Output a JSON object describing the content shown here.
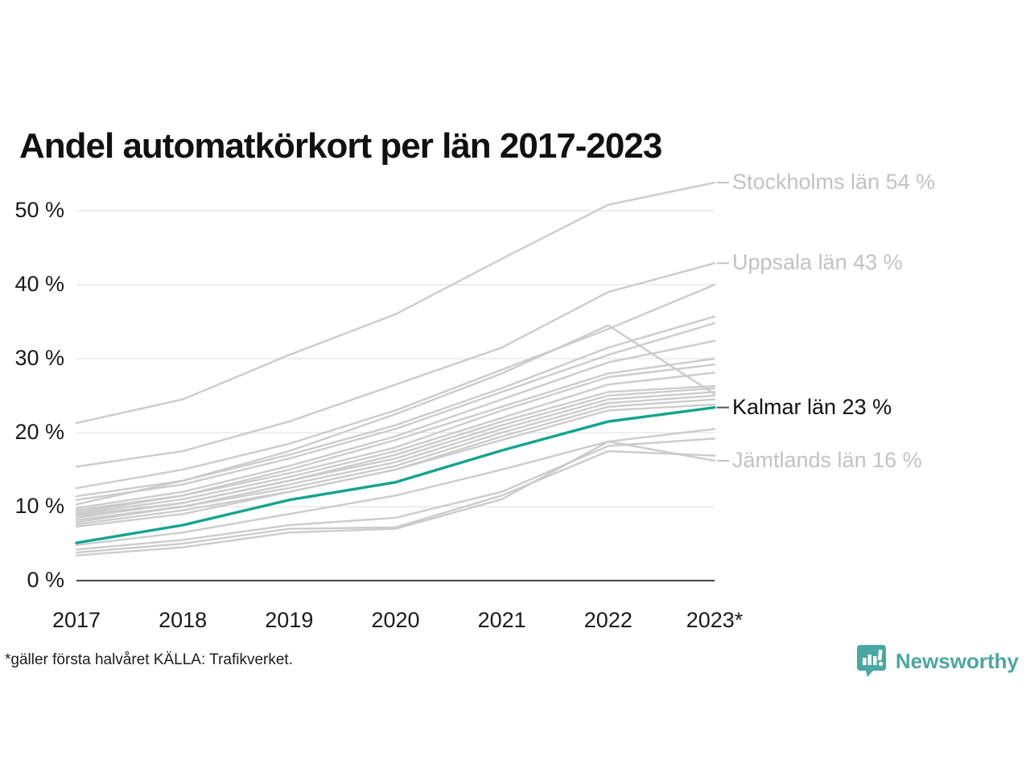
{
  "title": "Andel automatkörkort per län 2017-2023",
  "footnote": "*gäller första halvåret KÄLLA: Trafikverket.",
  "branding": {
    "logo_text": "Newsworthy",
    "logo_color": "#4ba7a2",
    "logo_icon": "bar-chart-speech-bubble-icon"
  },
  "colors": {
    "background": "#ffffff",
    "title_text": "#111111",
    "axis_text": "#1a1a1a",
    "gridline": "#e8e8e8",
    "axis_line": "#2b2b2b",
    "series_gray": "#c9c9c9",
    "highlight_teal": "#14a38f",
    "muted_label": "#c2c2c2",
    "strong_label": "#111111"
  },
  "chart_data": {
    "type": "line",
    "title": "Andel automatkörkort per län 2017-2023",
    "x": [
      2017,
      2018,
      2019,
      2020,
      2021,
      2022,
      2023
    ],
    "x_tick_labels": [
      "2017",
      "2018",
      "2019",
      "2020",
      "2021",
      "2022",
      "2023*"
    ],
    "y_ticks": [
      0,
      10,
      20,
      30,
      40,
      50
    ],
    "y_tick_labels": [
      "0 %",
      "10 %",
      "20 %",
      "30 %",
      "40 %",
      "50 %"
    ],
    "ylim": [
      0,
      57
    ],
    "grid": "horizontal",
    "legend_position": "right-edge-labels",
    "series": [
      {
        "label": "Stockholms län",
        "highlight": false,
        "values": [
          21.3,
          24.5,
          30.5,
          36,
          43.5,
          50.8,
          53.8
        ]
      },
      {
        "label": "Uppsala län",
        "highlight": false,
        "values": [
          15.4,
          17.5,
          21.5,
          26.5,
          31.5,
          39,
          42.9
        ]
      },
      {
        "label": null,
        "highlight": false,
        "values": [
          12.5,
          15,
          18.5,
          23,
          28.5,
          34,
          40
        ]
      },
      {
        "label": null,
        "highlight": false,
        "values": [
          11.4,
          13.5,
          17,
          21,
          26,
          31.5,
          35.7
        ]
      },
      {
        "label": null,
        "highlight": false,
        "values": [
          10.9,
          13,
          16.5,
          20.5,
          25.5,
          30.5,
          34.8
        ]
      },
      {
        "label": null,
        "highlight": false,
        "values": [
          10.3,
          13.5,
          17.5,
          22.5,
          28,
          34.5,
          25.2
        ]
      },
      {
        "label": null,
        "highlight": false,
        "values": [
          9.8,
          12,
          15.5,
          19.5,
          24.5,
          29.5,
          32.4
        ]
      },
      {
        "label": null,
        "highlight": false,
        "values": [
          9.5,
          11.5,
          15,
          19,
          23.5,
          28,
          30
        ]
      },
      {
        "label": null,
        "highlight": false,
        "values": [
          9.2,
          11.5,
          14.5,
          18,
          23,
          27.5,
          29.2
        ]
      },
      {
        "label": null,
        "highlight": false,
        "values": [
          9.0,
          11,
          14,
          17.5,
          22,
          26.5,
          28.1
        ]
      },
      {
        "label": null,
        "highlight": false,
        "values": [
          8.8,
          10.5,
          13.5,
          17,
          21.5,
          25.5,
          26.3
        ]
      },
      {
        "label": null,
        "highlight": false,
        "values": [
          8.5,
          10.5,
          13.5,
          16.5,
          21,
          25,
          26
        ]
      },
      {
        "label": null,
        "highlight": false,
        "values": [
          8.2,
          10,
          13,
          16,
          20.5,
          24.5,
          25.5
        ]
      },
      {
        "label": null,
        "highlight": false,
        "values": [
          7.9,
          10,
          12.5,
          15.5,
          20,
          24,
          25
        ]
      },
      {
        "label": null,
        "highlight": false,
        "values": [
          7.6,
          9.5,
          12,
          15,
          19.5,
          23.5,
          24.5
        ]
      },
      {
        "label": null,
        "highlight": false,
        "values": [
          7.3,
          9,
          12,
          15,
          19,
          23,
          23.8
        ]
      },
      {
        "label": "Kalmar län",
        "highlight": true,
        "values": [
          5.1,
          7.5,
          10.9,
          13.3,
          17.6,
          21.5,
          23.4
        ]
      },
      {
        "label": null,
        "highlight": false,
        "values": [
          4.8,
          6.5,
          9,
          11.5,
          15,
          18.8,
          20.5
        ]
      },
      {
        "label": null,
        "highlight": false,
        "values": [
          4.2,
          5.5,
          7.5,
          8.5,
          12,
          18.2,
          19.2
        ]
      },
      {
        "label": null,
        "highlight": false,
        "values": [
          3.8,
          5,
          7,
          7.2,
          11.5,
          17.5,
          16.9
        ]
      },
      {
        "label": "Jämtlands län",
        "highlight": false,
        "values": [
          3.4,
          4.5,
          6.5,
          7,
          11,
          18.8,
          16.2
        ]
      }
    ],
    "annotations": [
      {
        "series": 0,
        "label": "Stockholms län 54 %",
        "muted": true
      },
      {
        "series": 1,
        "label": "Uppsala län 43 %",
        "muted": true
      },
      {
        "series": 16,
        "label": "Kalmar län 23 %",
        "muted": false
      },
      {
        "series": 20,
        "label": "Jämtlands län 16 %",
        "muted": true
      }
    ]
  }
}
